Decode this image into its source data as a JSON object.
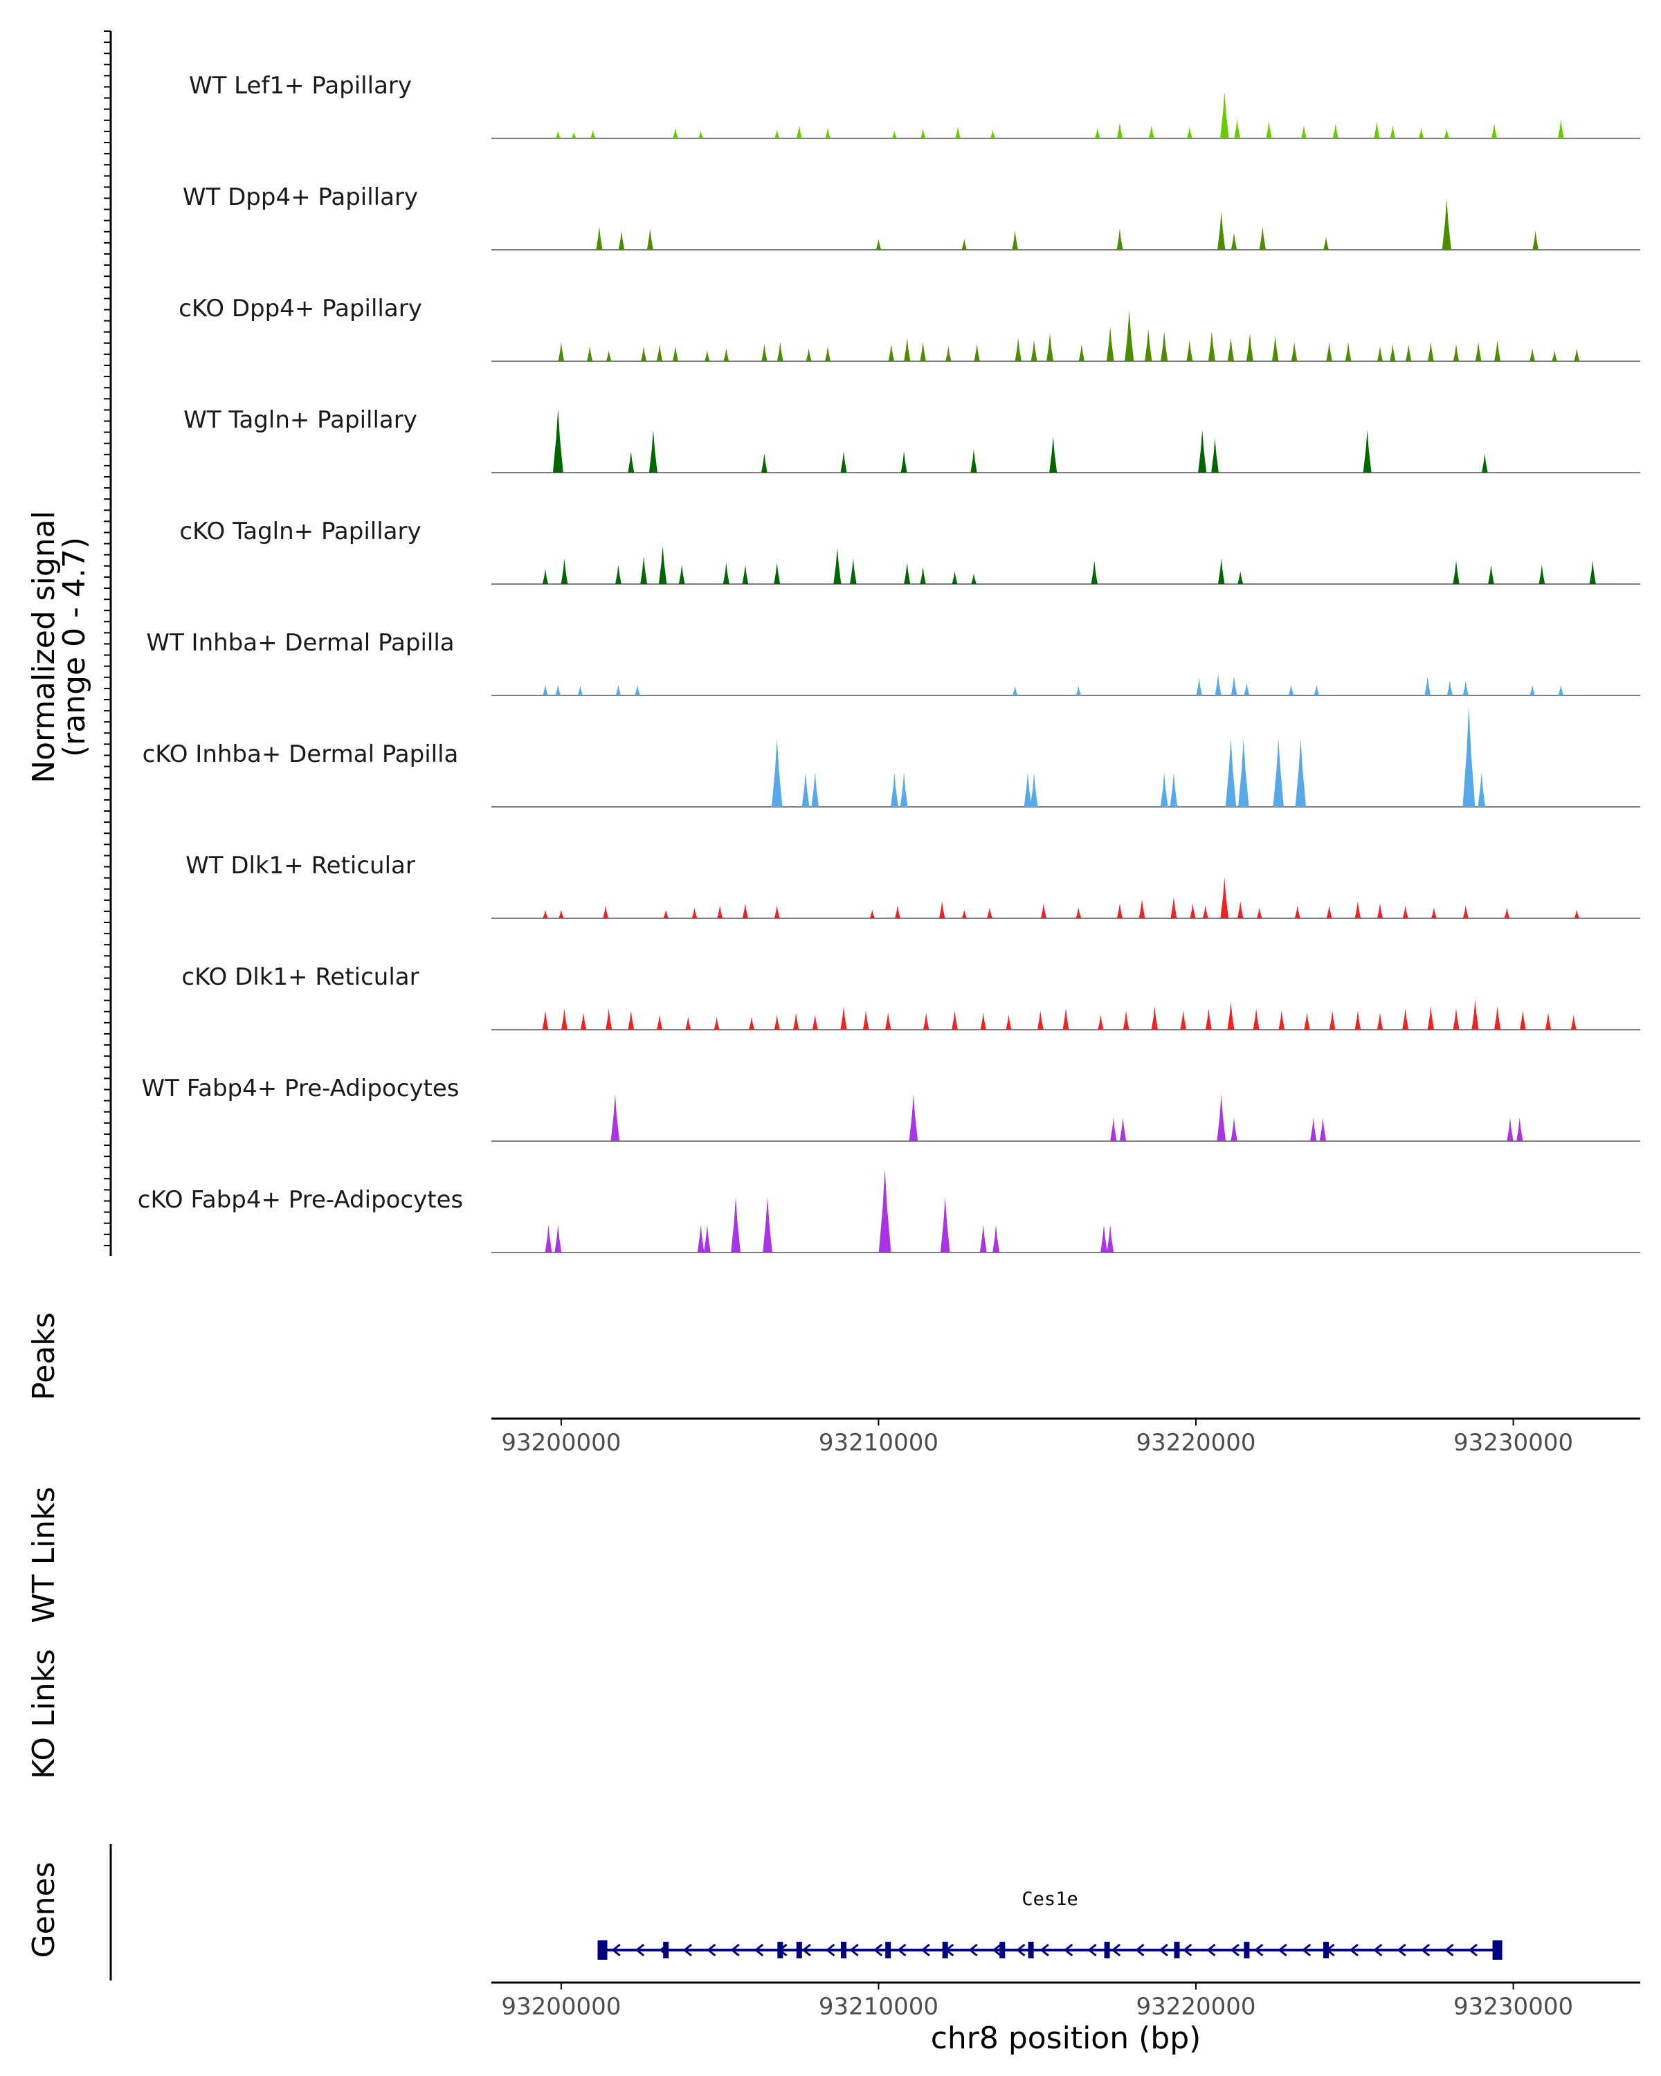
{
  "chart_data": {
    "type": "area",
    "region": {
      "chrom": "chr8",
      "start": 93197800,
      "end": 93234000
    },
    "y_axis_label": [
      "Normalized signal",
      "(range 0 - 4.7)"
    ],
    "ylim": [
      0,
      4.7
    ],
    "xlabel": "chr8 position (bp)",
    "x_ticks": [
      93200000,
      93210000,
      93220000,
      93230000
    ],
    "x_tick_labels": [
      "93200000",
      "93210000",
      "93220000",
      "93230000"
    ],
    "panel_labels": {
      "peaks": "Peaks",
      "wt_links": "WT Links",
      "ko_links": "KO Links",
      "genes": "Genes"
    },
    "tracks": [
      {
        "label": "WT Lef1+ Papillary",
        "color": "#66CC00",
        "peaks": [
          [
            93199900,
            0.35
          ],
          [
            93200400,
            0.3
          ],
          [
            93201000,
            0.4
          ],
          [
            93203600,
            0.5
          ],
          [
            93204400,
            0.35
          ],
          [
            93206800,
            0.4
          ],
          [
            93207500,
            0.6
          ],
          [
            93208400,
            0.5
          ],
          [
            93210500,
            0.35
          ],
          [
            93211400,
            0.45
          ],
          [
            93212500,
            0.55
          ],
          [
            93213600,
            0.4
          ],
          [
            93216900,
            0.5
          ],
          [
            93217600,
            0.75
          ],
          [
            93218600,
            0.6
          ],
          [
            93219800,
            0.55
          ],
          [
            93220900,
            2.2
          ],
          [
            93221300,
            0.9
          ],
          [
            93222300,
            0.8
          ],
          [
            93223400,
            0.6
          ],
          [
            93224400,
            0.7
          ],
          [
            93225700,
            0.8
          ],
          [
            93226200,
            0.6
          ],
          [
            93227100,
            0.5
          ],
          [
            93227900,
            0.45
          ],
          [
            93229400,
            0.7
          ],
          [
            93231500,
            0.9
          ]
        ]
      },
      {
        "label": "WT Dpp4+ Papillary",
        "color": "#4C8C00",
        "peaks": [
          [
            93201200,
            1.1
          ],
          [
            93201900,
            0.9
          ],
          [
            93202800,
            1.0
          ],
          [
            93210000,
            0.5
          ],
          [
            93212700,
            0.5
          ],
          [
            93214300,
            0.9
          ],
          [
            93217600,
            1.0
          ],
          [
            93220800,
            1.8
          ],
          [
            93221200,
            0.8
          ],
          [
            93222100,
            1.1
          ],
          [
            93224100,
            0.6
          ],
          [
            93227900,
            2.4
          ],
          [
            93230700,
            0.9
          ]
        ]
      },
      {
        "label": "cKO Dpp4+ Papillary",
        "color": "#4C8C00",
        "peaks": [
          [
            93200000,
            0.9
          ],
          [
            93200900,
            0.7
          ],
          [
            93201500,
            0.5
          ],
          [
            93202600,
            0.7
          ],
          [
            93203100,
            0.8
          ],
          [
            93203600,
            0.7
          ],
          [
            93204600,
            0.5
          ],
          [
            93205200,
            0.6
          ],
          [
            93206400,
            0.8
          ],
          [
            93206900,
            0.9
          ],
          [
            93207800,
            0.6
          ],
          [
            93208400,
            0.7
          ],
          [
            93210400,
            0.8
          ],
          [
            93210900,
            1.1
          ],
          [
            93211400,
            0.9
          ],
          [
            93212200,
            0.7
          ],
          [
            93213100,
            0.8
          ],
          [
            93214400,
            1.1
          ],
          [
            93214900,
            1.0
          ],
          [
            93215400,
            1.3
          ],
          [
            93216400,
            0.8
          ],
          [
            93217300,
            1.6
          ],
          [
            93217900,
            2.4
          ],
          [
            93218500,
            1.5
          ],
          [
            93219000,
            1.4
          ],
          [
            93219800,
            1.0
          ],
          [
            93220500,
            1.4
          ],
          [
            93221100,
            1.1
          ],
          [
            93221700,
            1.3
          ],
          [
            93222500,
            1.2
          ],
          [
            93223100,
            0.9
          ],
          [
            93224200,
            0.9
          ],
          [
            93224800,
            0.9
          ],
          [
            93225800,
            0.7
          ],
          [
            93226200,
            0.8
          ],
          [
            93226700,
            0.8
          ],
          [
            93227400,
            0.9
          ],
          [
            93228200,
            0.8
          ],
          [
            93228900,
            0.9
          ],
          [
            93229500,
            1.0
          ],
          [
            93230600,
            0.6
          ],
          [
            93231300,
            0.5
          ],
          [
            93232000,
            0.6
          ]
        ]
      },
      {
        "label": "WT Tagln+ Papillary",
        "color": "#006600",
        "peaks": [
          [
            93199900,
            3.0
          ],
          [
            93202200,
            1.0
          ],
          [
            93202900,
            2.0
          ],
          [
            93206400,
            0.9
          ],
          [
            93208900,
            1.0
          ],
          [
            93210800,
            1.0
          ],
          [
            93213000,
            1.1
          ],
          [
            93215500,
            1.7
          ],
          [
            93220200,
            2.0
          ],
          [
            93220600,
            1.6
          ],
          [
            93225400,
            2.0
          ],
          [
            93229100,
            0.9
          ]
        ]
      },
      {
        "label": "cKO Tagln+ Papillary",
        "color": "#006600",
        "peaks": [
          [
            93199500,
            0.7
          ],
          [
            93200100,
            1.2
          ],
          [
            93201800,
            0.9
          ],
          [
            93202600,
            1.3
          ],
          [
            93203200,
            1.8
          ],
          [
            93203800,
            0.9
          ],
          [
            93205200,
            1.0
          ],
          [
            93205800,
            0.9
          ],
          [
            93206800,
            1.0
          ],
          [
            93208700,
            1.7
          ],
          [
            93209200,
            1.2
          ],
          [
            93210900,
            1.0
          ],
          [
            93211400,
            0.8
          ],
          [
            93212400,
            0.6
          ],
          [
            93213000,
            0.5
          ],
          [
            93216800,
            1.1
          ],
          [
            93220800,
            1.2
          ],
          [
            93221400,
            0.6
          ],
          [
            93228200,
            1.1
          ],
          [
            93229300,
            0.9
          ],
          [
            93230900,
            0.9
          ],
          [
            93232500,
            1.1
          ]
        ]
      },
      {
        "label": "WT Inhba+ Dermal Papilla",
        "color": "#56A8E8",
        "peaks": [
          [
            93199500,
            0.5
          ],
          [
            93199900,
            0.5
          ],
          [
            93200600,
            0.45
          ],
          [
            93201800,
            0.5
          ],
          [
            93202400,
            0.5
          ],
          [
            93214300,
            0.45
          ],
          [
            93216300,
            0.45
          ],
          [
            93220100,
            0.8
          ],
          [
            93220700,
            1.0
          ],
          [
            93221200,
            0.9
          ],
          [
            93221600,
            0.6
          ],
          [
            93223000,
            0.5
          ],
          [
            93223800,
            0.5
          ],
          [
            93227300,
            0.9
          ],
          [
            93228000,
            0.7
          ],
          [
            93228500,
            0.7
          ],
          [
            93230600,
            0.5
          ],
          [
            93231500,
            0.5
          ]
        ]
      },
      {
        "label": "cKO Inhba+ Dermal Papilla",
        "color": "#56A8E8",
        "peaks": [
          [
            93206800,
            3.2
          ],
          [
            93207700,
            1.6
          ],
          [
            93208000,
            1.6
          ],
          [
            93210500,
            1.6
          ],
          [
            93210800,
            1.6
          ],
          [
            93214700,
            1.6
          ],
          [
            93214900,
            1.6
          ],
          [
            93219000,
            1.6
          ],
          [
            93219300,
            1.6
          ],
          [
            93221100,
            3.2
          ],
          [
            93221500,
            3.2
          ],
          [
            93222600,
            3.2
          ],
          [
            93223300,
            3.2
          ],
          [
            93228600,
            4.7
          ],
          [
            93229000,
            1.6
          ]
        ]
      },
      {
        "label": "WT Dlk1+ Reticular",
        "color": "#EE2222",
        "peaks": [
          [
            93199500,
            0.4
          ],
          [
            93200000,
            0.4
          ],
          [
            93201400,
            0.6
          ],
          [
            93203300,
            0.4
          ],
          [
            93204200,
            0.5
          ],
          [
            93205000,
            0.6
          ],
          [
            93205800,
            0.7
          ],
          [
            93206800,
            0.6
          ],
          [
            93209800,
            0.4
          ],
          [
            93210600,
            0.6
          ],
          [
            93212000,
            0.8
          ],
          [
            93212700,
            0.4
          ],
          [
            93213500,
            0.5
          ],
          [
            93215200,
            0.7
          ],
          [
            93216300,
            0.5
          ],
          [
            93217600,
            0.7
          ],
          [
            93218300,
            0.9
          ],
          [
            93219300,
            1.0
          ],
          [
            93219900,
            0.7
          ],
          [
            93220300,
            0.6
          ],
          [
            93220900,
            1.9
          ],
          [
            93221400,
            0.8
          ],
          [
            93222000,
            0.5
          ],
          [
            93223200,
            0.6
          ],
          [
            93224200,
            0.6
          ],
          [
            93225100,
            0.8
          ],
          [
            93225800,
            0.7
          ],
          [
            93226600,
            0.6
          ],
          [
            93227500,
            0.5
          ],
          [
            93228500,
            0.6
          ],
          [
            93229800,
            0.5
          ],
          [
            93232000,
            0.4
          ]
        ]
      },
      {
        "label": "cKO Dlk1+ Reticular",
        "color": "#EE2222",
        "peaks": [
          [
            93199500,
            0.9
          ],
          [
            93200100,
            1.0
          ],
          [
            93200700,
            0.8
          ],
          [
            93201500,
            1.0
          ],
          [
            93202200,
            0.9
          ],
          [
            93203100,
            0.7
          ],
          [
            93204000,
            0.6
          ],
          [
            93204900,
            0.6
          ],
          [
            93206000,
            0.6
          ],
          [
            93206800,
            0.7
          ],
          [
            93207400,
            0.8
          ],
          [
            93208000,
            0.7
          ],
          [
            93208900,
            1.1
          ],
          [
            93209600,
            0.9
          ],
          [
            93210300,
            0.8
          ],
          [
            93211500,
            0.8
          ],
          [
            93212400,
            0.9
          ],
          [
            93213300,
            0.8
          ],
          [
            93214100,
            0.7
          ],
          [
            93215100,
            0.9
          ],
          [
            93215900,
            1.0
          ],
          [
            93217000,
            0.7
          ],
          [
            93217800,
            0.9
          ],
          [
            93218700,
            1.1
          ],
          [
            93219600,
            0.9
          ],
          [
            93220400,
            1.0
          ],
          [
            93221100,
            1.3
          ],
          [
            93221900,
            1.0
          ],
          [
            93222700,
            0.9
          ],
          [
            93223500,
            0.8
          ],
          [
            93224300,
            0.9
          ],
          [
            93225100,
            0.9
          ],
          [
            93225800,
            0.8
          ],
          [
            93226600,
            1.0
          ],
          [
            93227400,
            1.1
          ],
          [
            93228200,
            1.0
          ],
          [
            93228800,
            1.4
          ],
          [
            93229500,
            1.1
          ],
          [
            93230300,
            0.9
          ],
          [
            93231100,
            0.8
          ],
          [
            93231900,
            0.7
          ]
        ]
      },
      {
        "label": "WT Fabp4+ Pre-Adipocytes",
        "color": "#AA33E6",
        "peaks": [
          [
            93201700,
            2.2
          ],
          [
            93211100,
            2.2
          ],
          [
            93217400,
            1.1
          ],
          [
            93217700,
            1.1
          ],
          [
            93220800,
            2.2
          ],
          [
            93221200,
            1.1
          ],
          [
            93223700,
            1.1
          ],
          [
            93224000,
            1.1
          ],
          [
            93229900,
            1.1
          ],
          [
            93230200,
            1.1
          ]
        ]
      },
      {
        "label": "cKO Fabp4+ Pre-Adipocytes",
        "color": "#AA33E6",
        "peaks": [
          [
            93199600,
            1.3
          ],
          [
            93199900,
            1.3
          ],
          [
            93204400,
            1.3
          ],
          [
            93204600,
            1.3
          ],
          [
            93205500,
            2.6
          ],
          [
            93206500,
            2.6
          ],
          [
            93210200,
            3.9
          ],
          [
            93212100,
            2.6
          ],
          [
            93213300,
            1.3
          ],
          [
            93213700,
            1.3
          ],
          [
            93217100,
            1.3
          ],
          [
            93217300,
            1.3
          ]
        ]
      }
    ],
    "gene": {
      "name": "Ces1e",
      "start": 93201300,
      "end": 93229500,
      "strand": "-",
      "color": "#000080",
      "exons": [
        93201300,
        93203300,
        93206900,
        93207500,
        93208900,
        93210300,
        93212100,
        93213900,
        93214800,
        93217200,
        93219400,
        93221600,
        93224100,
        93229500
      ]
    }
  }
}
